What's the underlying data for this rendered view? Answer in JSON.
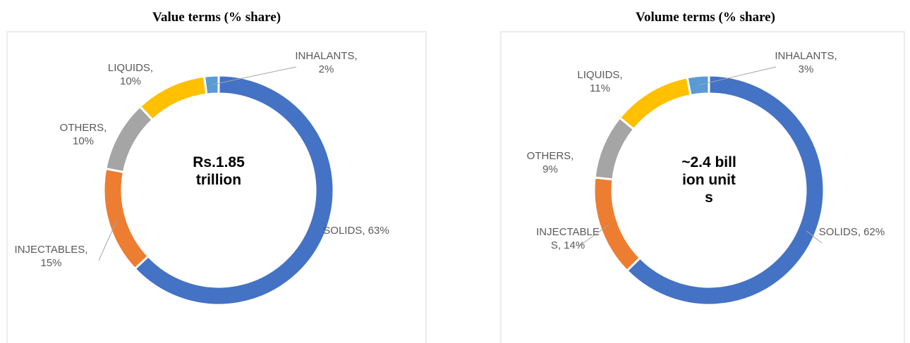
{
  "chart_data": [
    {
      "type": "donut",
      "title": "Value terms (% share)",
      "center_label": "Rs.1.85 trillion",
      "values": [
        63,
        15,
        10,
        10,
        2
      ],
      "value_labels": [
        "SOLIDS, 63%",
        "INJECTABLES, 15%",
        "OTHERS, 10%",
        "LIQUIDS, 10%",
        "INHALANTS, 2%"
      ],
      "colors": [
        "#4472c4",
        "#ed7d31",
        "#a5a5a5",
        "#ffc000",
        "#5b9bd5"
      ]
    },
    {
      "type": "donut",
      "title": "Volume terms (% share)",
      "center_label": "~2.4 billion units",
      "values": [
        62,
        14,
        9,
        11,
        3
      ],
      "value_labels": [
        "SOLIDS, 62%",
        "INJECTABLES, 14%",
        "OTHERS, 9%",
        "LIQUIDS, 11%",
        "INHALANTS, 3%"
      ],
      "colors": [
        "#4472c4",
        "#ed7d31",
        "#a5a5a5",
        "#ffc000",
        "#5b9bd5"
      ]
    }
  ]
}
